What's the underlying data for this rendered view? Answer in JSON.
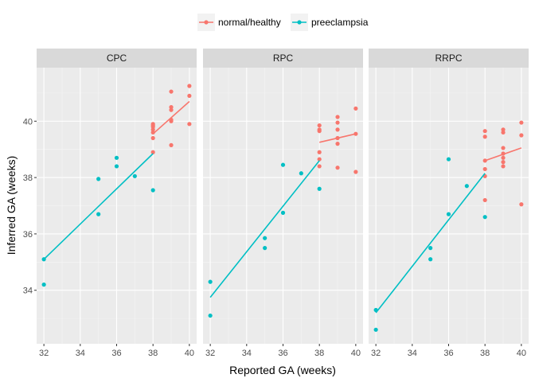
{
  "chart_data": {
    "type": "scatter",
    "xlabel": "Reported GA (weeks)",
    "ylabel": "Inferred GA (weeks)",
    "xlim": [
      31.6,
      40.4
    ],
    "ylim": [
      32.1,
      41.9
    ],
    "x_ticks": [
      32,
      34,
      36,
      38,
      40
    ],
    "y_ticks": [
      34,
      36,
      38,
      40
    ],
    "grid": true,
    "legend_position": "top",
    "colors": {
      "normal/healthy": "#F8766D",
      "preeclampsia": "#00BFC4"
    },
    "legend": [
      {
        "key": "normal",
        "label": "normal/healthy",
        "color": "#F8766D"
      },
      {
        "key": "pre",
        "label": "preeclampsia",
        "color": "#00BFC4"
      }
    ],
    "panels": [
      {
        "title": "CPC",
        "series": [
          {
            "key": "normal",
            "name": "normal/healthy",
            "points": [
              [
                38,
                38.9
              ],
              [
                38,
                39.4
              ],
              [
                38,
                39.6
              ],
              [
                38,
                39.7
              ],
              [
                38,
                39.8
              ],
              [
                38,
                39.85
              ],
              [
                38,
                39.9
              ],
              [
                39,
                39.15
              ],
              [
                39,
                40.0
              ],
              [
                39,
                40.05
              ],
              [
                39,
                40.4
              ],
              [
                39,
                40.5
              ],
              [
                39,
                41.05
              ],
              [
                40,
                39.9
              ],
              [
                40,
                40.9
              ],
              [
                40,
                41.25
              ]
            ],
            "fit": [
              [
                38,
                39.55
              ],
              [
                40,
                40.7
              ]
            ]
          },
          {
            "key": "pre",
            "name": "preeclampsia",
            "points": [
              [
                32,
                35.1
              ],
              [
                32,
                34.2
              ],
              [
                35,
                37.95
              ],
              [
                35,
                36.7
              ],
              [
                36,
                38.7
              ],
              [
                36,
                38.4
              ],
              [
                37,
                38.05
              ],
              [
                38,
                37.55
              ]
            ],
            "fit": [
              [
                32,
                35.1
              ],
              [
                38,
                38.85
              ]
            ]
          }
        ]
      },
      {
        "title": "RPC",
        "series": [
          {
            "key": "normal",
            "name": "normal/healthy",
            "points": [
              [
                38,
                38.4
              ],
              [
                38,
                38.65
              ],
              [
                38,
                38.9
              ],
              [
                38,
                39.65
              ],
              [
                38,
                39.7
              ],
              [
                38,
                39.85
              ],
              [
                39,
                38.35
              ],
              [
                39,
                39.2
              ],
              [
                39,
                39.4
              ],
              [
                39,
                39.7
              ],
              [
                39,
                39.95
              ],
              [
                39,
                40.15
              ],
              [
                40,
                38.2
              ],
              [
                40,
                39.55
              ],
              [
                40,
                40.45
              ]
            ],
            "fit": [
              [
                38,
                39.25
              ],
              [
                40,
                39.55
              ]
            ]
          },
          {
            "key": "pre",
            "name": "preeclampsia",
            "points": [
              [
                32,
                34.3
              ],
              [
                32,
                33.1
              ],
              [
                35,
                35.85
              ],
              [
                35,
                35.5
              ],
              [
                36,
                38.45
              ],
              [
                36,
                36.75
              ],
              [
                37,
                38.15
              ],
              [
                38,
                37.6
              ]
            ],
            "fit": [
              [
                32,
                33.75
              ],
              [
                38,
                38.6
              ]
            ]
          }
        ]
      },
      {
        "title": "RRPC",
        "series": [
          {
            "key": "normal",
            "name": "normal/healthy",
            "points": [
              [
                38,
                37.2
              ],
              [
                38,
                38.05
              ],
              [
                38,
                38.3
              ],
              [
                38,
                38.6
              ],
              [
                38,
                39.45
              ],
              [
                38,
                39.65
              ],
              [
                39,
                38.4
              ],
              [
                39,
                38.55
              ],
              [
                39,
                38.7
              ],
              [
                39,
                38.85
              ],
              [
                39,
                39.05
              ],
              [
                39,
                39.6
              ],
              [
                39,
                39.7
              ],
              [
                40,
                37.05
              ],
              [
                40,
                39.5
              ],
              [
                40,
                39.95
              ]
            ],
            "fit": [
              [
                38,
                38.6
              ],
              [
                40,
                39.05
              ]
            ]
          },
          {
            "key": "pre",
            "name": "preeclampsia",
            "points": [
              [
                32,
                33.3
              ],
              [
                32,
                32.6
              ],
              [
                35,
                35.5
              ],
              [
                35,
                35.1
              ],
              [
                36,
                38.65
              ],
              [
                36,
                36.7
              ],
              [
                37,
                37.7
              ],
              [
                38,
                36.6
              ]
            ],
            "fit": [
              [
                32,
                33.2
              ],
              [
                38,
                38.15
              ]
            ]
          }
        ]
      }
    ]
  }
}
